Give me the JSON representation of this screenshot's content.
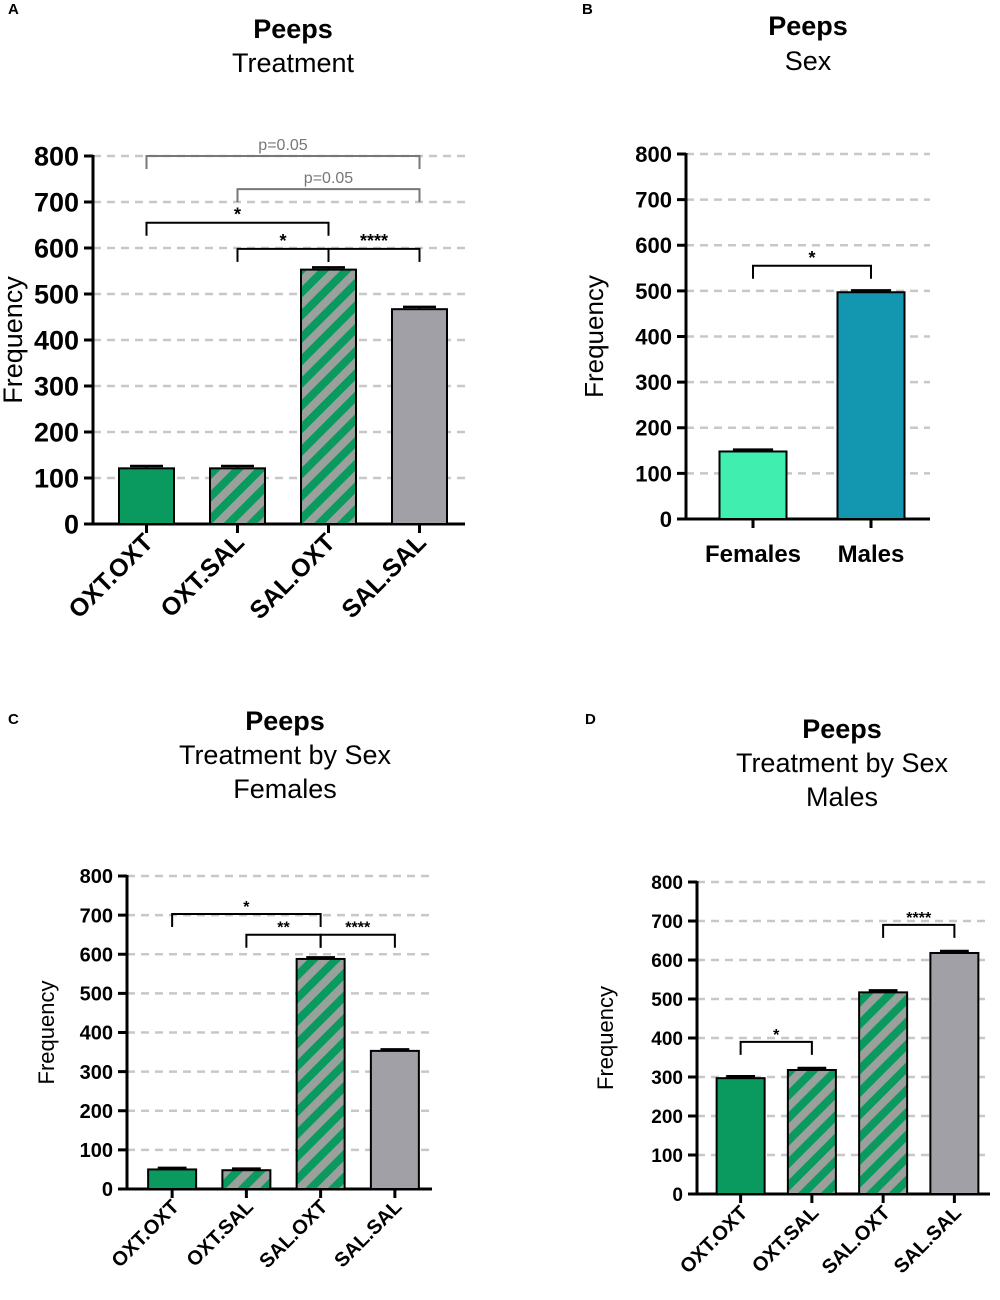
{
  "colors": {
    "green": "#0a9a60",
    "stripe_gray": "#9aa19d",
    "gray": "#a1a0a6",
    "light_teal": "#40eeb0",
    "teal": "#1396b0",
    "grid": "#c8c8c8",
    "p_bracket": "#777777"
  },
  "chart_data": [
    {
      "panel": "A",
      "type": "bar",
      "title": "Peeps",
      "subtitle": "Treatment",
      "subtitle2": "",
      "ylabel": "Frequency",
      "xlabel": "",
      "ylim": [
        0,
        800
      ],
      "yticks": [
        0,
        100,
        200,
        300,
        400,
        500,
        600,
        700,
        800
      ],
      "grid": true,
      "categories": [
        "OXT.OXT",
        "OXT.SAL",
        "SAL.OXT",
        "SAL.SAL"
      ],
      "values": [
        121,
        121,
        553,
        467
      ],
      "errors": [
        5,
        5,
        5,
        5
      ],
      "styles": [
        "green",
        "stripe",
        "stripe",
        "gray"
      ],
      "brackets": [
        {
          "from": 0,
          "to": 3,
          "label": "p=0.05",
          "y": 800,
          "muted": true
        },
        {
          "from": 1,
          "to": 3,
          "label": "p=0.05",
          "y": 728,
          "muted": true
        },
        {
          "from": 0,
          "to": 2,
          "label": "*",
          "y": 655,
          "muted": false
        },
        {
          "from": 1,
          "to": 2,
          "label": "*",
          "y": 598,
          "muted": false
        },
        {
          "from": 2,
          "to": 3,
          "label": "****",
          "y": 598,
          "muted": false
        }
      ]
    },
    {
      "panel": "B",
      "type": "bar",
      "title": "Peeps",
      "subtitle": "Sex",
      "subtitle2": "",
      "ylabel": "Frequency",
      "xlabel": "",
      "ylim": [
        0,
        800
      ],
      "yticks": [
        0,
        100,
        200,
        300,
        400,
        500,
        600,
        700,
        800
      ],
      "grid": true,
      "categories": [
        "Females",
        "Males"
      ],
      "values": [
        148,
        497
      ],
      "errors": [
        4,
        4
      ],
      "styles": [
        "light_teal",
        "teal"
      ],
      "brackets": [
        {
          "from": 0,
          "to": 1,
          "label": "*",
          "y": 555,
          "muted": false
        }
      ]
    },
    {
      "panel": "C",
      "type": "bar",
      "title": "Peeps",
      "subtitle": "Treatment by Sex",
      "subtitle2": "Females",
      "ylabel": "Frequency",
      "xlabel": "",
      "ylim": [
        0,
        800
      ],
      "yticks": [
        0,
        100,
        200,
        300,
        400,
        500,
        600,
        700,
        800
      ],
      "grid": true,
      "categories": [
        "OXT.OXT",
        "OXT.SAL",
        "SAL.OXT",
        "SAL.SAL"
      ],
      "values": [
        50,
        48,
        588,
        353
      ],
      "errors": [
        4,
        4,
        4,
        4
      ],
      "styles": [
        "green",
        "stripe",
        "stripe",
        "gray"
      ],
      "brackets": [
        {
          "from": 0,
          "to": 2,
          "label": "*",
          "y": 703,
          "muted": false
        },
        {
          "from": 1,
          "to": 2,
          "label": "**",
          "y": 650,
          "muted": false
        },
        {
          "from": 2,
          "to": 3,
          "label": "****",
          "y": 650,
          "muted": false
        }
      ]
    },
    {
      "panel": "D",
      "type": "bar",
      "title": "Peeps",
      "subtitle": "Treatment by Sex",
      "subtitle2": "Males",
      "ylabel": "Frequency",
      "xlabel": "",
      "ylim": [
        0,
        800
      ],
      "yticks": [
        0,
        100,
        200,
        300,
        400,
        500,
        600,
        700,
        800
      ],
      "grid": true,
      "categories": [
        "OXT.OXT",
        "OXT.SAL",
        "SAL.OXT",
        "SAL.SAL"
      ],
      "values": [
        297,
        318,
        517,
        618
      ],
      "errors": [
        5,
        5,
        5,
        5
      ],
      "styles": [
        "green",
        "stripe",
        "stripe",
        "gray"
      ],
      "brackets": [
        {
          "from": 0,
          "to": 1,
          "label": "*",
          "y": 390,
          "muted": false
        },
        {
          "from": 2,
          "to": 3,
          "label": "****",
          "y": 690,
          "muted": false
        }
      ]
    }
  ]
}
